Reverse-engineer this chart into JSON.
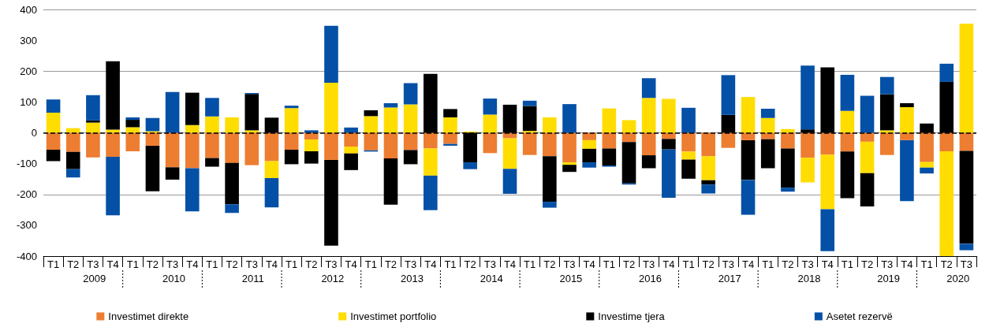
{
  "chart_data": {
    "type": "bar",
    "stacked": true,
    "categories": [
      "T1",
      "T2",
      "T3",
      "T4",
      "T1",
      "T2",
      "T3",
      "T4",
      "T1",
      "T2",
      "T3",
      "T4",
      "T1",
      "T2",
      "T3",
      "T4",
      "T1",
      "T2",
      "T3",
      "T4",
      "T1",
      "T2",
      "T3",
      "T4",
      "T1",
      "T2",
      "T3",
      "T4",
      "T1",
      "T2",
      "T3",
      "T4",
      "T1",
      "T2",
      "T3",
      "T4",
      "T1",
      "T2",
      "T3",
      "T4",
      "T1",
      "T2",
      "T3",
      "T4",
      "T1",
      "T2",
      "T3"
    ],
    "annotations": [
      "2009",
      "2010",
      "2011",
      "2012",
      "2013",
      "2014",
      "2015",
      "2016",
      "2017",
      "2018",
      "2019",
      "2020"
    ],
    "series": [
      {
        "name": "Investimet direkte",
        "color": "#ed7d31",
        "values": [
          -55,
          -62,
          -80,
          -78,
          -60,
          -42,
          -112,
          -115,
          -82,
          -98,
          -105,
          -92,
          -55,
          -22,
          -88,
          -45,
          -57,
          -83,
          -56,
          -51,
          -36,
          0,
          -66,
          -18,
          -72,
          -76,
          -96,
          -24,
          -51,
          -30,
          -73,
          -20,
          -61,
          -76,
          -49,
          -24,
          -21,
          -51,
          -81,
          -71,
          -61,
          -29,
          -72,
          -24,
          -95,
          -60,
          -59
        ]
      },
      {
        "name": "Investimet portfolio",
        "color": "#ffdd00",
        "values": [
          65,
          15,
          33,
          10,
          18,
          5,
          0,
          25,
          53,
          50,
          8,
          -55,
          80,
          -38,
          162,
          -22,
          54,
          82,
          92,
          -88,
          50,
          4,
          59,
          -99,
          6,
          50,
          -8,
          -28,
          79,
          41,
          113,
          110,
          -26,
          -78,
          0,
          116,
          48,
          12,
          -80,
          -177,
          71,
          -102,
          8,
          83,
          -18,
          -345,
          354
        ]
      },
      {
        "name": "Investime tjera",
        "color": "#000000",
        "values": [
          -37,
          -56,
          7,
          222,
          24,
          -148,
          -40,
          105,
          -28,
          -134,
          118,
          49,
          -47,
          -40,
          -278,
          -54,
          19,
          -150,
          -46,
          191,
          27,
          -96,
          0,
          91,
          81,
          -148,
          -23,
          -44,
          -55,
          -134,
          -42,
          -34,
          -62,
          -14,
          58,
          -129,
          -94,
          -127,
          11,
          212,
          -151,
          -108,
          117,
          13,
          30,
          165,
          -301
        ]
      },
      {
        "name": "Asetet rezervë",
        "color": "#0450a6",
        "values": [
          43,
          -27,
          82,
          -190,
          8,
          43,
          132,
          -140,
          60,
          -28,
          3,
          -95,
          8,
          8,
          185,
          17,
          -4,
          14,
          69,
          -112,
          -6,
          -22,
          52,
          -81,
          17,
          -19,
          93,
          -17,
          -4,
          -4,
          64,
          -157,
          81,
          -29,
          129,
          -113,
          30,
          -13,
          207,
          -136,
          117,
          120,
          56,
          -198,
          -19,
          59,
          -21
        ]
      }
    ],
    "ylim": [
      -400,
      400
    ],
    "yticks": [
      -400,
      -300,
      -200,
      -100,
      0,
      100,
      200,
      300,
      400
    ],
    "grid": "y",
    "legend": "bottom",
    "ref_lines": [
      {
        "axis": "y",
        "value": 0,
        "color": "#000000",
        "line_style": "dashed"
      }
    ]
  }
}
